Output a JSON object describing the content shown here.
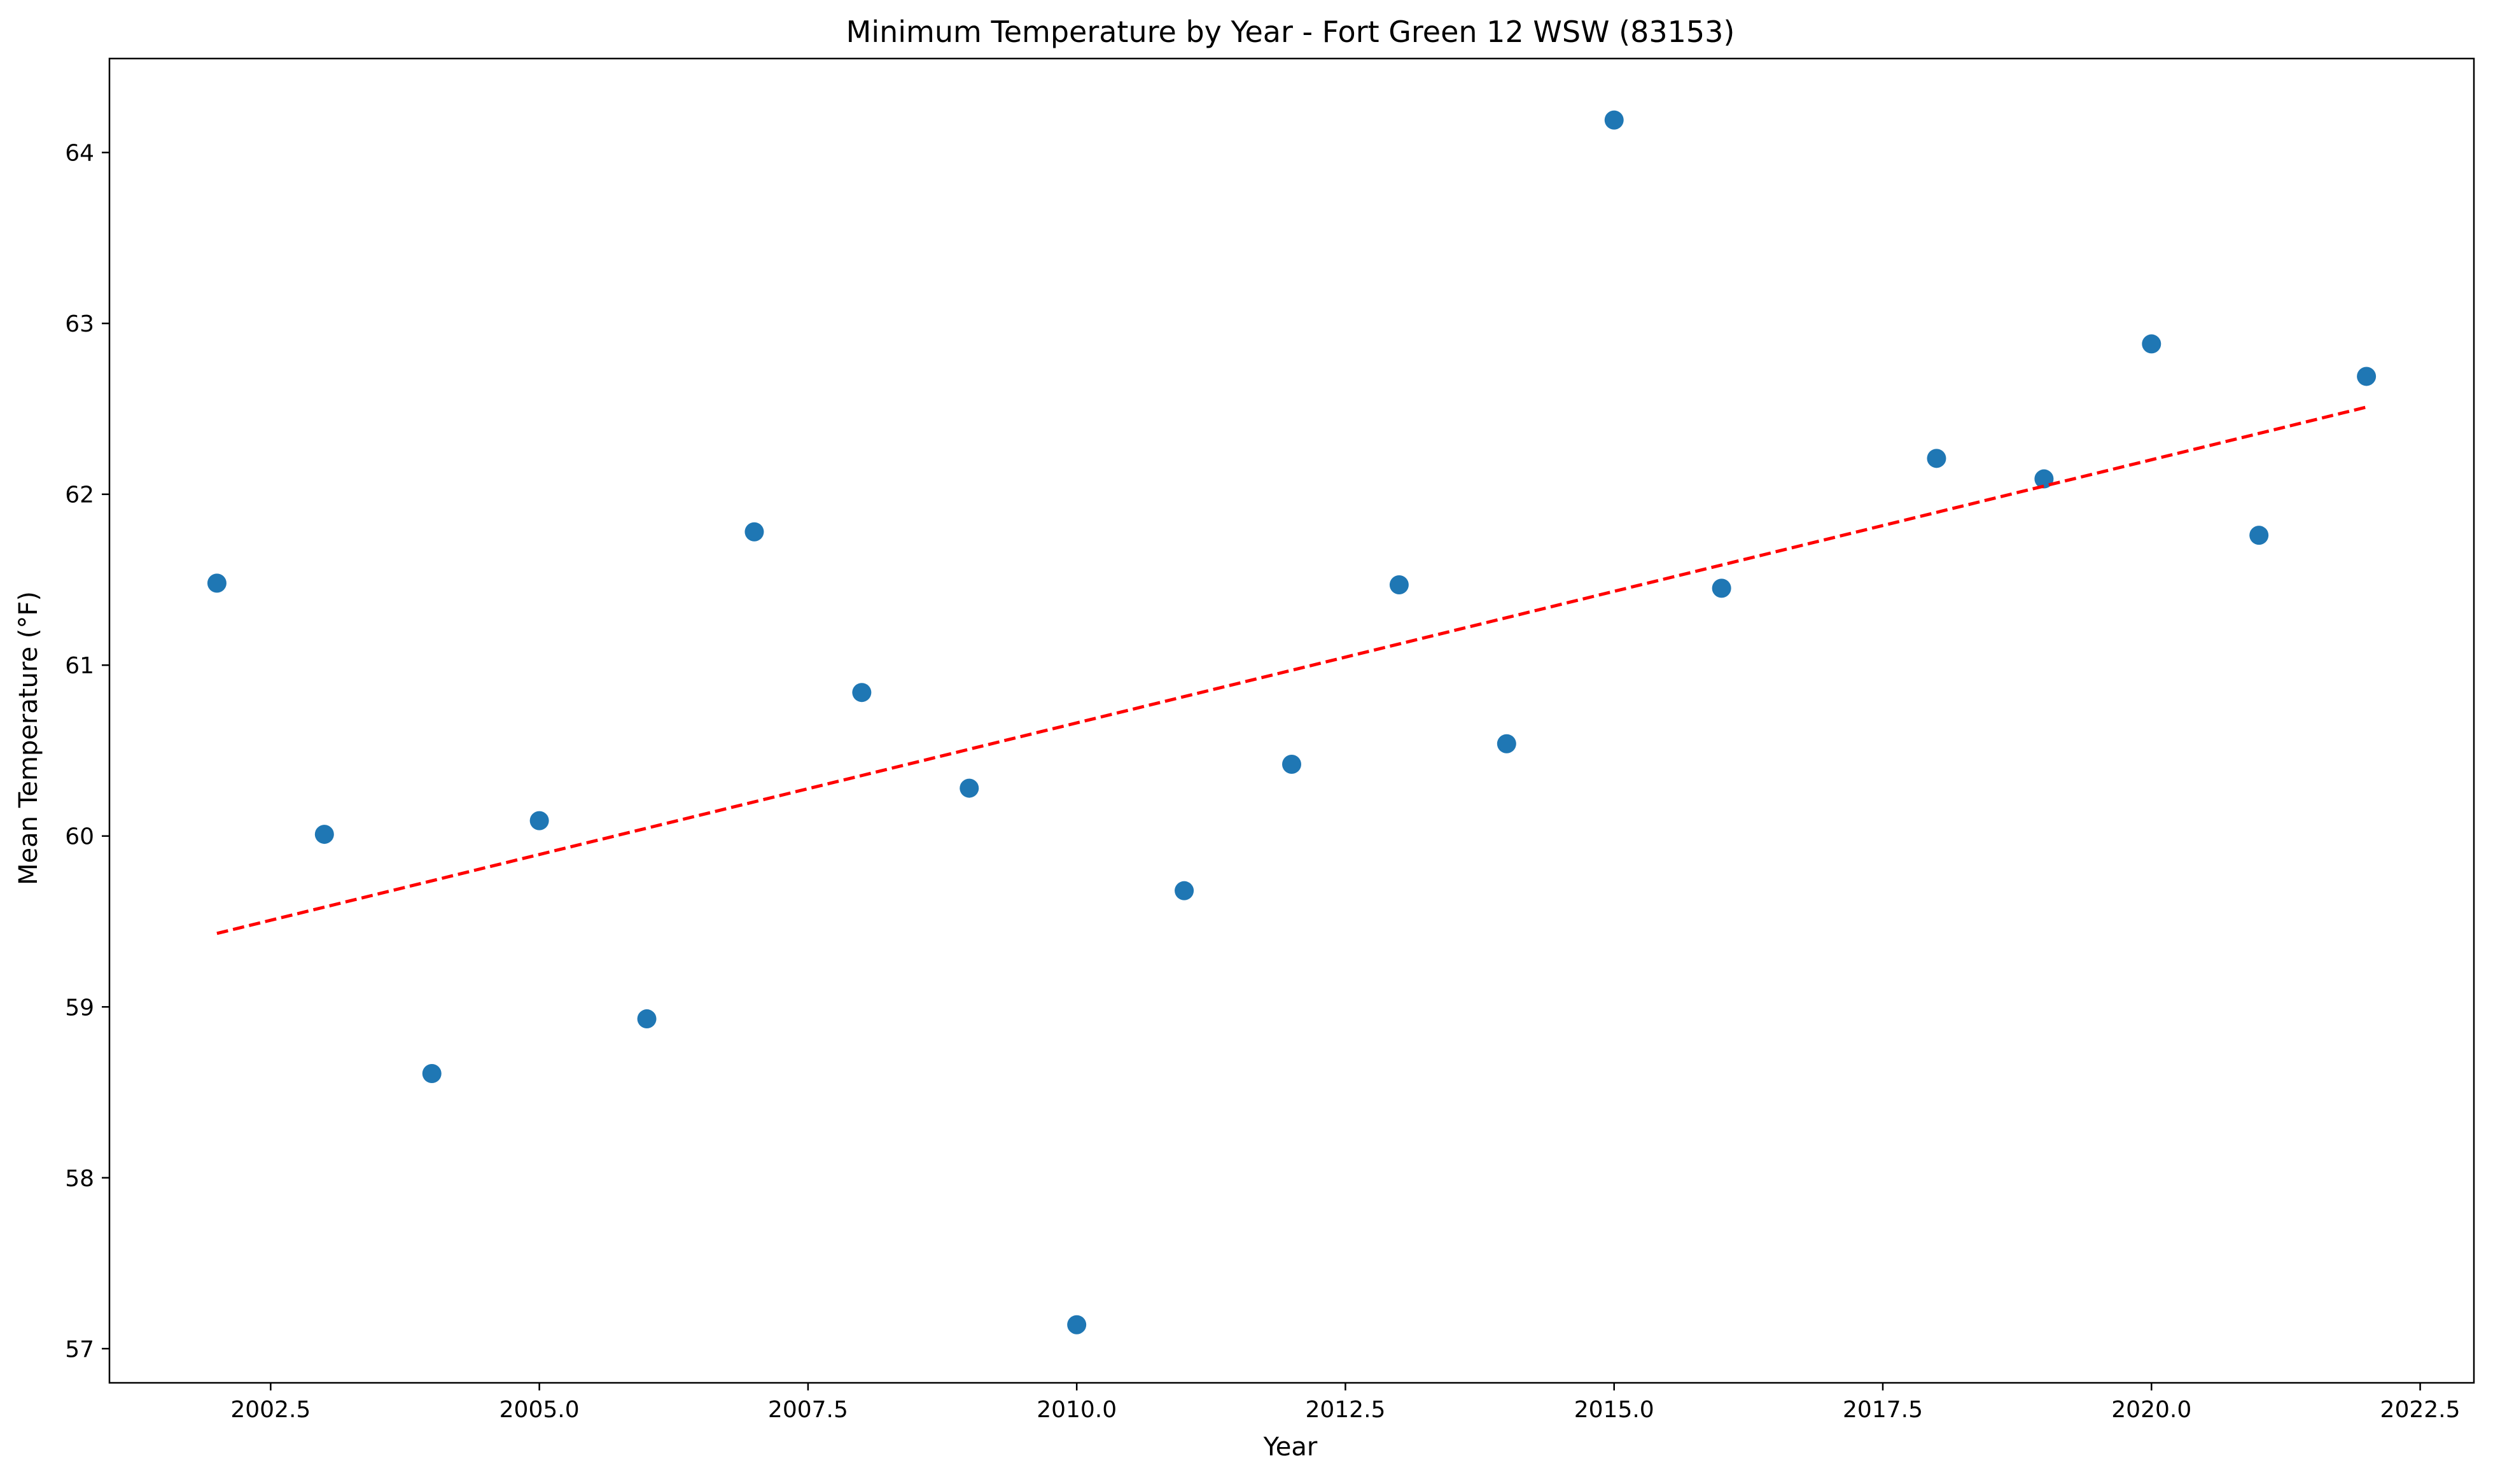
{
  "chart_data": {
    "type": "scatter",
    "title": "Minimum Temperature by Year - Fort Green 12 WSW (83153)",
    "xlabel": "Year",
    "ylabel": "Mean Temperature (°F)",
    "xlim": [
      2001.0,
      2023.0
    ],
    "ylim": [
      56.8,
      64.55
    ],
    "x_ticks": [
      2002.5,
      2005.0,
      2007.5,
      2010.0,
      2012.5,
      2015.0,
      2017.5,
      2020.0,
      2022.5
    ],
    "x_tick_labels": [
      "2002.5",
      "2005.0",
      "2007.5",
      "2010.0",
      "2012.5",
      "2015.0",
      "2017.5",
      "2020.0",
      "2022.5"
    ],
    "y_ticks": [
      57,
      58,
      59,
      60,
      61,
      62,
      63,
      64
    ],
    "y_tick_labels": [
      "57",
      "58",
      "59",
      "60",
      "61",
      "62",
      "63",
      "64"
    ],
    "grid": false,
    "legend": "none",
    "series": [
      {
        "kind": "points",
        "color": "#1f77b4",
        "x": [
          2002,
          2003,
          2004,
          2005,
          2006,
          2007,
          2008,
          2009,
          2010,
          2011,
          2012,
          2013,
          2014,
          2015,
          2016,
          2018,
          2019,
          2020,
          2021,
          2022
        ],
        "y": [
          61.48,
          60.01,
          58.61,
          60.09,
          58.93,
          61.78,
          60.84,
          60.28,
          57.14,
          59.68,
          60.42,
          61.47,
          60.54,
          64.19,
          61.45,
          62.21,
          62.09,
          62.88,
          61.76,
          62.69
        ]
      },
      {
        "kind": "trend-line",
        "color": "#ff0000",
        "style": "dashed",
        "x": [
          2002,
          2022
        ],
        "y": [
          59.43,
          62.51
        ]
      }
    ]
  }
}
